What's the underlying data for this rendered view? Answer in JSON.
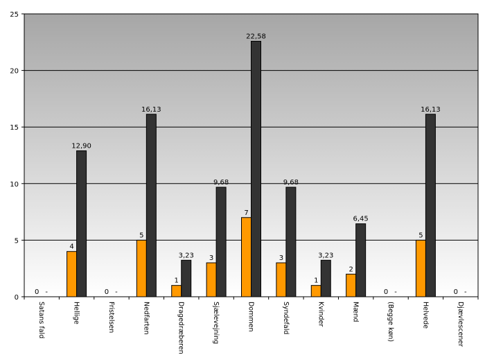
{
  "chart_data": {
    "type": "bar",
    "title": "",
    "xlabel": "",
    "ylabel": "",
    "ylim": [
      0,
      25
    ],
    "yticks": [
      0,
      5,
      10,
      15,
      20,
      25
    ],
    "grid": true,
    "legend": "none",
    "colors": {
      "series_a": "#ff9900",
      "series_b": "#333333",
      "plot_bg_top": "#a6a6a6",
      "plot_bg_bottom": "#ffffff"
    },
    "categories": [
      "Satans fald",
      "Hellige",
      "Fristelsen",
      "Nedfarten",
      "Dragedræberen",
      "Sjælevejning",
      "Dommen",
      "Syndefald",
      "Kvinder",
      "Mænd",
      "(Begge køn)",
      "Helvede",
      "Djævlescener"
    ],
    "series": [
      {
        "values": [
          0,
          4,
          0,
          5,
          1,
          3,
          7,
          3,
          1,
          2,
          0,
          5,
          0
        ],
        "labels": [
          "0",
          "4",
          "0",
          "5",
          "1",
          "3",
          "7",
          "3",
          "1",
          "2",
          "0",
          "5",
          "0"
        ]
      },
      {
        "values": [
          0,
          12.9,
          0,
          16.13,
          3.23,
          9.68,
          22.58,
          9.68,
          3.23,
          6.45,
          0,
          16.13,
          0
        ],
        "labels": [
          "-",
          "12,90",
          "-",
          "16,13",
          "3,23",
          "9,68",
          "22,58",
          "9,68",
          "3,23",
          "6,45",
          "-",
          "16,13",
          "-"
        ]
      }
    ]
  }
}
